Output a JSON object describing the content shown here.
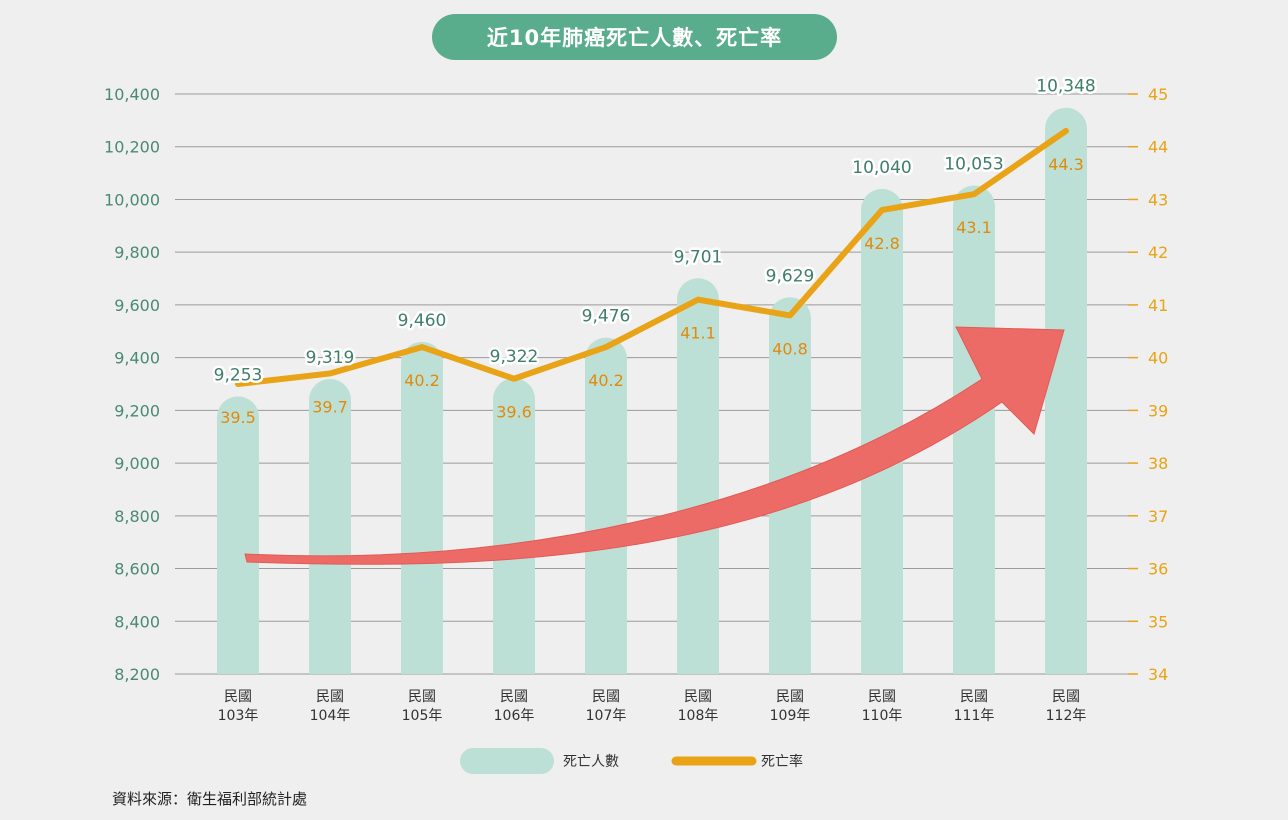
{
  "chart_data": {
    "type": "bar+line",
    "title": "近10年肺癌死亡人數、死亡率",
    "categories": [
      {
        "line1": "民國",
        "line2": "103年"
      },
      {
        "line1": "民國",
        "line2": "104年"
      },
      {
        "line1": "民國",
        "line2": "105年"
      },
      {
        "line1": "民國",
        "line2": "106年"
      },
      {
        "line1": "民國",
        "line2": "107年"
      },
      {
        "line1": "民國",
        "line2": "108年"
      },
      {
        "line1": "民國",
        "line2": "109年"
      },
      {
        "line1": "民國",
        "line2": "110年"
      },
      {
        "line1": "民國",
        "line2": "111年"
      },
      {
        "line1": "民國",
        "line2": "112年"
      }
    ],
    "series": [
      {
        "name": "死亡人數",
        "type": "bar",
        "axis": "left",
        "values": [
          9253,
          9319,
          9460,
          9322,
          9476,
          9701,
          9629,
          10040,
          10053,
          10348
        ],
        "labels": [
          "9,253",
          "9,319",
          "9,460",
          "9,322",
          "9,476",
          "9,701",
          "9,629",
          "10,040",
          "10,053",
          "10,348"
        ],
        "color": "#bde0d6"
      },
      {
        "name": "死亡率",
        "type": "line",
        "axis": "right",
        "values": [
          39.5,
          39.7,
          40.2,
          39.6,
          40.2,
          41.1,
          40.8,
          42.8,
          43.1,
          44.3
        ],
        "labels": [
          "39.5",
          "39.7",
          "40.2",
          "39.6",
          "40.2",
          "41.1",
          "40.8",
          "42.8",
          "43.1",
          "44.3"
        ],
        "color": "#e8a317"
      }
    ],
    "y_left": {
      "range": [
        8200,
        10400
      ],
      "ticks": [
        8200,
        8400,
        8600,
        8800,
        9000,
        9200,
        9400,
        9600,
        9800,
        10000,
        10200,
        10400
      ],
      "tick_labels": [
        "8,200",
        "8,400",
        "8,600",
        "8,800",
        "9,000",
        "9,200",
        "9,400",
        "9,600",
        "9,800",
        "10,000",
        "10,200",
        "10,400"
      ],
      "color": "#4a8a74"
    },
    "y_right": {
      "range": [
        34,
        45
      ],
      "ticks": [
        34,
        35,
        36,
        37,
        38,
        39,
        40,
        41,
        42,
        43,
        44,
        45
      ],
      "tick_labels": [
        "34",
        "35",
        "36",
        "37",
        "38",
        "39",
        "40",
        "41",
        "42",
        "43",
        "44",
        "45"
      ],
      "color": "#e8a317"
    },
    "grid": true,
    "legend": {
      "position": "bottom-center"
    },
    "annotation": "red rising trend arrow"
  },
  "source": "資料來源：衛生福利部統計處",
  "colors": {
    "bar": "#bde0d6",
    "line": "#e8a317",
    "arrow": "#ec6b66",
    "title_bg": "#5aad8c",
    "grid": "#9a9a9a"
  }
}
